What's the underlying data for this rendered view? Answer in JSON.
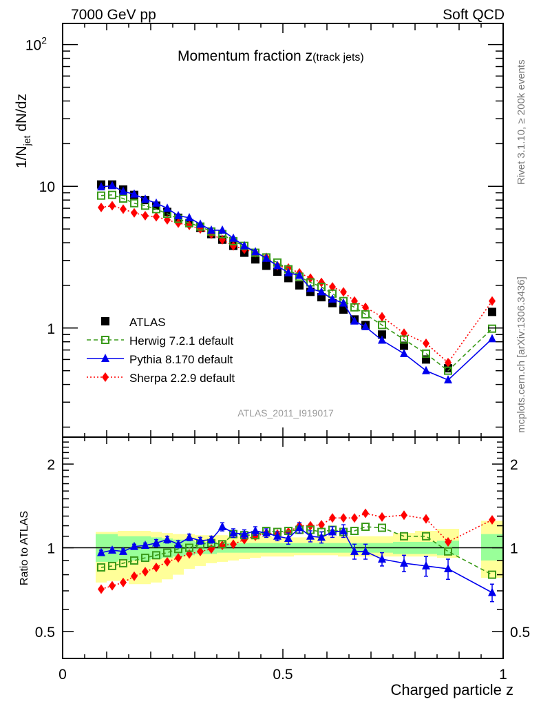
{
  "header": {
    "left": "7000 GeV pp",
    "right": "Soft QCD"
  },
  "side_labels": {
    "rivet": "Rivet 3.1.10, ≥ 200k events",
    "mcplots": "mcplots.cern.ch [arXiv:1306.3436]"
  },
  "colors": {
    "data": "#000000",
    "herwig": "#3a9a1a",
    "pythia": "#0000ee",
    "sherpa": "#ff0000",
    "band_inner": "#99ff99",
    "band_outer": "#ffff99",
    "watermark": "#999999",
    "side_text": "#777777"
  },
  "chart_data": [
    {
      "type": "scatter",
      "panel": "main",
      "title": "Momentum fraction z",
      "title_suffix": "(track jets)",
      "ylabel": "1/N_jet dN/dz",
      "ylabel_main": "1/N",
      "ylabel_sub": "jet",
      "ylabel_rest": " dN/dz",
      "xlabel": "",
      "yscale": "log",
      "ylim": [
        0.17,
        141
      ],
      "xlim": [
        0,
        1
      ],
      "ytick_labels": [
        {
          "value": 1,
          "label": "1"
        },
        {
          "value": 10,
          "label": "10"
        },
        {
          "value": 100,
          "label": "10",
          "sup": "2"
        }
      ],
      "watermark": "ATLAS_2011_I919017",
      "legend_position": "lower-left",
      "x": [
        0.0875,
        0.1125,
        0.1375,
        0.1625,
        0.1875,
        0.2125,
        0.2375,
        0.2625,
        0.2875,
        0.3125,
        0.3375,
        0.3625,
        0.3875,
        0.4125,
        0.4375,
        0.4625,
        0.4875,
        0.5125,
        0.5375,
        0.5625,
        0.5875,
        0.6125,
        0.6375,
        0.6625,
        0.6875,
        0.725,
        0.775,
        0.825,
        0.875,
        0.975
      ],
      "series": [
        {
          "name": "ATLAS",
          "key": "data",
          "marker": "square",
          "line": "none",
          "values": [
            10.3,
            10.3,
            9.5,
            8.7,
            8.0,
            7.3,
            6.6,
            6.0,
            5.5,
            5.1,
            4.6,
            4.2,
            3.8,
            3.4,
            3.05,
            2.75,
            2.5,
            2.25,
            2.0,
            1.8,
            1.65,
            1.5,
            1.35,
            1.15,
            1.05,
            0.9,
            0.75,
            0.6,
            0.52,
            1.3
          ]
        },
        {
          "name": "Herwig 7.2.1 default",
          "key": "herwig",
          "marker": "open-square",
          "line": "dashed",
          "values": [
            8.6,
            8.7,
            8.2,
            7.6,
            7.3,
            6.9,
            6.4,
            5.9,
            5.5,
            5.2,
            4.8,
            4.6,
            4.1,
            3.8,
            3.4,
            3.15,
            2.9,
            2.6,
            2.3,
            2.1,
            1.95,
            1.75,
            1.55,
            1.4,
            1.25,
            1.05,
            0.83,
            0.66,
            0.5,
            0.99
          ]
        },
        {
          "name": "Pythia 8.170 default",
          "key": "pythia",
          "marker": "triangle",
          "line": "solid",
          "values": [
            9.9,
            10.1,
            9.2,
            8.8,
            8.1,
            7.6,
            7.0,
            6.2,
            6.0,
            5.4,
            4.9,
            4.9,
            4.3,
            3.8,
            3.45,
            3.1,
            2.75,
            2.45,
            2.35,
            1.9,
            1.8,
            1.6,
            1.5,
            1.12,
            1.02,
            0.82,
            0.66,
            0.5,
            0.43,
            0.84
          ]
        },
        {
          "name": "Sherpa 2.2.9 default",
          "key": "sherpa",
          "marker": "diamond",
          "line": "dotted",
          "values": [
            7.1,
            7.3,
            6.9,
            6.5,
            6.2,
            6.1,
            5.8,
            5.5,
            5.3,
            5.0,
            4.6,
            4.2,
            3.8,
            3.6,
            3.4,
            3.15,
            2.75,
            2.65,
            2.45,
            2.25,
            2.1,
            1.95,
            1.8,
            1.55,
            1.4,
            1.2,
            0.92,
            0.78,
            0.57,
            1.55
          ]
        }
      ]
    },
    {
      "type": "scatter",
      "panel": "ratio",
      "ylabel": "Ratio to ATLAS",
      "xlabel": "Charged particle z",
      "yscale": "log",
      "ylim": [
        0.4,
        2.5
      ],
      "xlim": [
        0,
        1
      ],
      "xtick_labels": [
        {
          "value": 0,
          "label": "0"
        },
        {
          "value": 0.5,
          "label": "0.5"
        },
        {
          "value": 1,
          "label": "1"
        }
      ],
      "ytick_labels": [
        {
          "value": 0.5,
          "label": "0.5"
        },
        {
          "value": 1,
          "label": "1"
        },
        {
          "value": 2,
          "label": "2"
        }
      ],
      "bands": {
        "edges": [
          0.075,
          0.1,
          0.125,
          0.15,
          0.175,
          0.2,
          0.225,
          0.25,
          0.275,
          0.3,
          0.325,
          0.35,
          0.375,
          0.4,
          0.425,
          0.45,
          0.475,
          0.5,
          0.525,
          0.55,
          0.575,
          0.6,
          0.625,
          0.65,
          0.675,
          0.7,
          0.75,
          0.8,
          0.85,
          0.9,
          0.95,
          1.0
        ],
        "inner_lo": [
          0.89,
          0.89,
          0.9,
          0.9,
          0.9,
          0.91,
          0.92,
          0.93,
          0.94,
          0.95,
          0.95,
          0.96,
          0.96,
          0.96,
          0.96,
          0.96,
          0.96,
          0.96,
          0.96,
          0.96,
          0.96,
          0.96,
          0.96,
          0.96,
          0.96,
          0.96,
          0.95,
          0.95,
          0.94,
          null,
          0.9
        ],
        "inner_hi": [
          1.12,
          1.12,
          1.1,
          1.1,
          1.1,
          1.09,
          1.08,
          1.07,
          1.06,
          1.05,
          1.05,
          1.04,
          1.04,
          1.04,
          1.04,
          1.04,
          1.04,
          1.04,
          1.04,
          1.04,
          1.04,
          1.04,
          1.04,
          1.04,
          1.04,
          1.04,
          1.05,
          1.05,
          1.06,
          1.16,
          1.12
        ],
        "outer_lo": [
          0.75,
          0.76,
          0.76,
          0.74,
          0.74,
          0.75,
          0.77,
          0.8,
          0.84,
          0.86,
          0.88,
          0.89,
          0.9,
          0.91,
          0.92,
          0.93,
          0.93,
          0.93,
          0.94,
          0.94,
          0.94,
          0.94,
          0.93,
          0.93,
          0.93,
          0.93,
          0.93,
          0.93,
          0.92,
          null,
          0.78
        ],
        "outer_hi": [
          1.14,
          1.14,
          1.15,
          1.15,
          1.15,
          1.14,
          1.13,
          1.12,
          1.12,
          1.11,
          1.11,
          1.11,
          1.1,
          1.1,
          1.1,
          1.1,
          1.09,
          1.09,
          1.09,
          1.09,
          1.1,
          1.1,
          1.1,
          1.1,
          1.1,
          1.1,
          1.13,
          1.15,
          1.17,
          1.33,
          1.25
        ]
      },
      "series": [
        {
          "name": "Herwig 7.2.1 default",
          "key": "herwig",
          "marker": "open-square",
          "line": "dashed",
          "values": [
            0.85,
            0.86,
            0.88,
            0.9,
            0.92,
            0.94,
            0.96,
            0.99,
            1.0,
            1.03,
            1.04,
            1.03,
            1.12,
            1.11,
            1.11,
            1.15,
            1.14,
            1.15,
            1.16,
            1.16,
            1.14,
            1.16,
            1.14,
            1.15,
            1.19,
            1.18,
            1.1,
            1.1,
            0.97,
            0.8
          ]
        },
        {
          "name": "Pythia 8.170 default",
          "key": "pythia",
          "marker": "triangle",
          "line": "solid",
          "values": [
            0.96,
            0.98,
            0.97,
            1.01,
            1.02,
            1.04,
            1.07,
            1.03,
            1.09,
            1.06,
            1.07,
            1.19,
            1.13,
            1.12,
            1.15,
            1.13,
            1.1,
            1.08,
            1.18,
            1.1,
            1.09,
            1.14,
            1.15,
            0.97,
            0.97,
            0.91,
            0.88,
            0.86,
            0.84,
            0.69
          ],
          "errors": [
            0.02,
            0.02,
            0.02,
            0.02,
            0.02,
            0.03,
            0.03,
            0.03,
            0.03,
            0.03,
            0.03,
            0.04,
            0.04,
            0.04,
            0.04,
            0.04,
            0.04,
            0.05,
            0.05,
            0.05,
            0.05,
            0.05,
            0.06,
            0.06,
            0.06,
            0.05,
            0.06,
            0.07,
            0.07,
            0.05
          ]
        },
        {
          "name": "Sherpa 2.2.9 default",
          "key": "sherpa",
          "marker": "diamond",
          "line": "dotted",
          "values": [
            0.71,
            0.73,
            0.75,
            0.79,
            0.82,
            0.85,
            0.89,
            0.92,
            0.95,
            0.97,
            0.99,
            1.02,
            1.03,
            1.07,
            1.1,
            1.13,
            1.12,
            1.14,
            1.2,
            1.2,
            1.21,
            1.28,
            1.28,
            1.28,
            1.33,
            1.29,
            1.31,
            1.27,
            1.05,
            1.26
          ]
        }
      ]
    }
  ]
}
